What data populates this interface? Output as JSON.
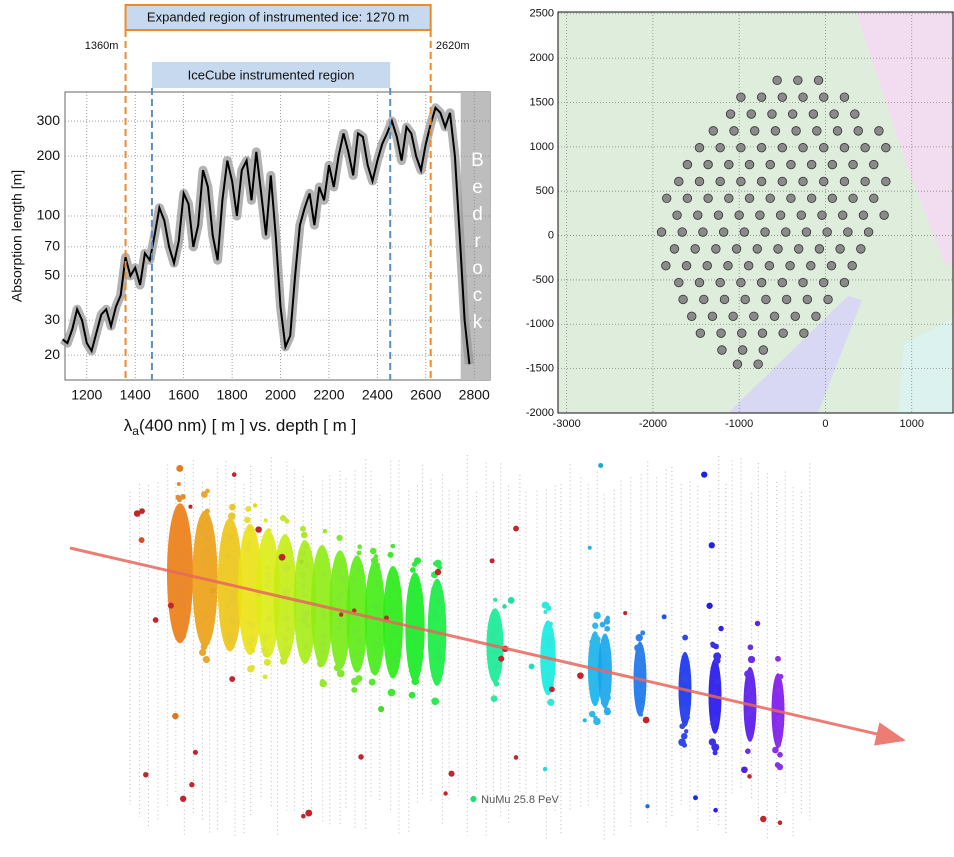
{
  "chart_data": [
    {
      "type": "line",
      "ylabel": "Absorption length [m]",
      "xlabel": [
        "λ",
        "a",
        "(400 nm) [ m ] vs. depth [ m ]"
      ],
      "expanded_region_label": "Expanded region of instrumented ice: 1270 m",
      "instrumented_region_label": "IceCube instrumented region",
      "annotations": [
        {
          "value": 1360,
          "label": "1360m"
        },
        {
          "value": 2620,
          "label": "2620m"
        }
      ],
      "instrumented_range": [
        1469,
        2453
      ],
      "bedrock_label": "Bedrock",
      "bedrock_start": 2744,
      "color": "#000000",
      "band_color": "#9a9a9a",
      "log_y": true,
      "grid": true,
      "xlim": [
        1110,
        2865
      ],
      "ylim": [
        15,
        420
      ],
      "xticks": [
        1200,
        1400,
        1600,
        1800,
        2000,
        2200,
        2400,
        2600,
        2800
      ],
      "yticks": [
        20,
        30,
        50,
        70,
        100,
        200,
        300
      ],
      "x": [
        1100,
        1120,
        1140,
        1160,
        1180,
        1200,
        1220,
        1240,
        1260,
        1280,
        1300,
        1320,
        1340,
        1360,
        1380,
        1400,
        1420,
        1440,
        1460,
        1480,
        1500,
        1520,
        1540,
        1560,
        1580,
        1600,
        1620,
        1640,
        1660,
        1680,
        1700,
        1720,
        1740,
        1760,
        1780,
        1800,
        1820,
        1840,
        1860,
        1880,
        1900,
        1920,
        1940,
        1960,
        1980,
        2000,
        2020,
        2040,
        2060,
        2080,
        2100,
        2120,
        2140,
        2160,
        2180,
        2200,
        2220,
        2240,
        2260,
        2280,
        2300,
        2320,
        2340,
        2360,
        2380,
        2400,
        2420,
        2440,
        2460,
        2480,
        2500,
        2520,
        2540,
        2560,
        2580,
        2600,
        2620,
        2640,
        2660,
        2680,
        2700,
        2720,
        2740,
        2760,
        2780
      ],
      "values": [
        24,
        23,
        27,
        34,
        30,
        23,
        21,
        26,
        32,
        34,
        28,
        35,
        40,
        62,
        50,
        55,
        45,
        65,
        60,
        80,
        110,
        95,
        70,
        58,
        75,
        130,
        115,
        70,
        90,
        170,
        140,
        80,
        60,
        120,
        190,
        150,
        100,
        170,
        190,
        120,
        210,
        130,
        80,
        160,
        80,
        35,
        22,
        25,
        50,
        90,
        110,
        130,
        90,
        140,
        120,
        180,
        140,
        200,
        260,
        210,
        160,
        260,
        250,
        180,
        150,
        190,
        230,
        260,
        300,
        250,
        190,
        280,
        260,
        200,
        170,
        230,
        290,
        350,
        330,
        280,
        330,
        200,
        80,
        30,
        18
      ]
    },
    {
      "type": "scatter",
      "color": "#8a8a8a",
      "grid": true,
      "xlim": [
        -3100,
        1490
      ],
      "ylim": [
        -2000,
        2520
      ],
      "xticks": [
        -3000,
        -2000,
        -1000,
        0,
        1000
      ],
      "yticks": [
        -2000,
        -1500,
        -1000,
        -500,
        0,
        500,
        1000,
        1500,
        2000,
        2500
      ],
      "x": [
        -560,
        -320,
        -80,
        -980,
        -740,
        -500,
        -260,
        -20,
        220,
        -1100,
        -860,
        -620,
        -380,
        -140,
        100,
        340,
        -1300,
        -1060,
        -820,
        -580,
        -340,
        -100,
        140,
        380,
        620,
        -1460,
        -1220,
        -980,
        -740,
        -500,
        -260,
        -20,
        220,
        460,
        700,
        -1600,
        -1360,
        -1120,
        -880,
        -640,
        -400,
        -160,
        80,
        320,
        560,
        -1700,
        -1460,
        -1220,
        -980,
        -740,
        -500,
        -260,
        -20,
        220,
        460,
        700,
        -1840,
        -1600,
        -1360,
        -1120,
        -880,
        -640,
        -400,
        -160,
        80,
        320,
        560,
        -1720,
        -1480,
        -1240,
        -1000,
        -760,
        -520,
        -280,
        -40,
        200,
        440,
        680,
        -1900,
        -1660,
        -1420,
        -1180,
        -940,
        -700,
        -460,
        -220,
        20,
        260,
        500,
        -1750,
        -1510,
        -1270,
        -1030,
        -790,
        -550,
        -310,
        -70,
        170,
        410,
        -1850,
        -1610,
        -1370,
        -1130,
        -890,
        -650,
        -410,
        -170,
        70,
        310,
        -1700,
        -1460,
        -1220,
        -980,
        -740,
        -500,
        -260,
        -20,
        220,
        -1650,
        -1410,
        -1170,
        -930,
        -690,
        -450,
        -210,
        30,
        -1550,
        -1310,
        -1070,
        -830,
        -590,
        -350,
        -110,
        -1450,
        -1210,
        -970,
        -730,
        -490,
        -250,
        -1200,
        -960,
        -720,
        -1020,
        -780
      ],
      "values": [
        1750,
        1750,
        1750,
        1560,
        1560,
        1560,
        1560,
        1560,
        1560,
        1370,
        1370,
        1370,
        1370,
        1370,
        1370,
        1370,
        1180,
        1180,
        1180,
        1180,
        1180,
        1180,
        1180,
        1180,
        1180,
        990,
        990,
        990,
        990,
        990,
        990,
        990,
        990,
        990,
        990,
        800,
        800,
        800,
        800,
        800,
        800,
        800,
        800,
        800,
        800,
        610,
        610,
        610,
        610,
        610,
        610,
        610,
        610,
        610,
        610,
        610,
        420,
        420,
        420,
        420,
        420,
        420,
        420,
        420,
        420,
        420,
        420,
        230,
        230,
        230,
        230,
        230,
        230,
        230,
        230,
        230,
        230,
        230,
        40,
        40,
        40,
        40,
        40,
        40,
        40,
        40,
        40,
        40,
        40,
        -150,
        -150,
        -150,
        -150,
        -150,
        -150,
        -150,
        -150,
        -150,
        -150,
        -340,
        -340,
        -340,
        -340,
        -340,
        -340,
        -340,
        -340,
        -340,
        -340,
        -530,
        -530,
        -530,
        -530,
        -530,
        -530,
        -530,
        -530,
        -530,
        -720,
        -720,
        -720,
        -720,
        -720,
        -720,
        -720,
        -720,
        -910,
        -910,
        -910,
        -910,
        -910,
        -910,
        -910,
        -1100,
        -1100,
        -1100,
        -1100,
        -1100,
        -1100,
        -1290,
        -1290,
        -1290,
        -1450,
        -1450
      ]
    }
  ],
  "event_display": {
    "caption": "NuMu 25.8 PeV"
  }
}
